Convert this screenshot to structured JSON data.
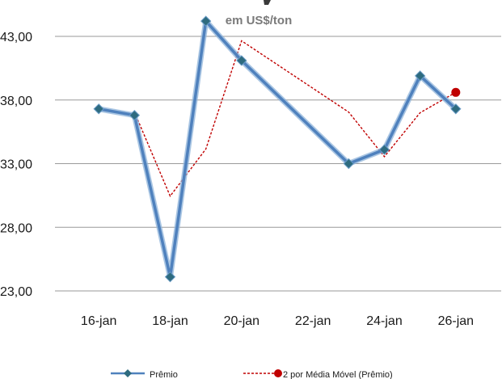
{
  "chart_data": {
    "type": "line",
    "title": "",
    "subtitle": "em US$/ton",
    "xlabel": "",
    "ylabel": "",
    "x_dates": [
      "2000-01-16",
      "2000-01-17",
      "2000-01-18",
      "2000-01-19",
      "2000-01-20",
      "2000-01-23",
      "2000-01-24",
      "2000-01-25",
      "2000-01-26"
    ],
    "x_tick_labels": [
      "16-jan",
      "18-jan",
      "20-jan",
      "22-jan",
      "24-jan",
      "26-jan"
    ],
    "x_tick_dates": [
      "2000-01-16",
      "2000-01-18",
      "2000-01-20",
      "2000-01-22",
      "2000-01-24",
      "2000-01-26"
    ],
    "xlim": [
      "2000-01-15",
      "2000-01-27"
    ],
    "y_tick_labels": [
      "23,00",
      "28,00",
      "33,00",
      "38,00",
      "43,00"
    ],
    "y_ticks": [
      23,
      28,
      33,
      38,
      43
    ],
    "ylim": [
      23,
      43
    ],
    "grid": "horizontal",
    "legend_position": "bottom",
    "series": [
      {
        "name": "Prêmio",
        "values": [
          37.3,
          36.8,
          24.1,
          44.2,
          41.1,
          33.0,
          34.1,
          39.9,
          37.3
        ],
        "color": "#4f81bd",
        "marker_color": "#2e6b7f",
        "style": "solid"
      },
      {
        "name": "2 por Média Móvel (Prêmio)",
        "values": [
          null,
          37.05,
          30.45,
          34.15,
          42.65,
          37.05,
          33.55,
          37.0,
          38.6
        ],
        "color": "#c00000",
        "style": "dashed"
      }
    ]
  }
}
